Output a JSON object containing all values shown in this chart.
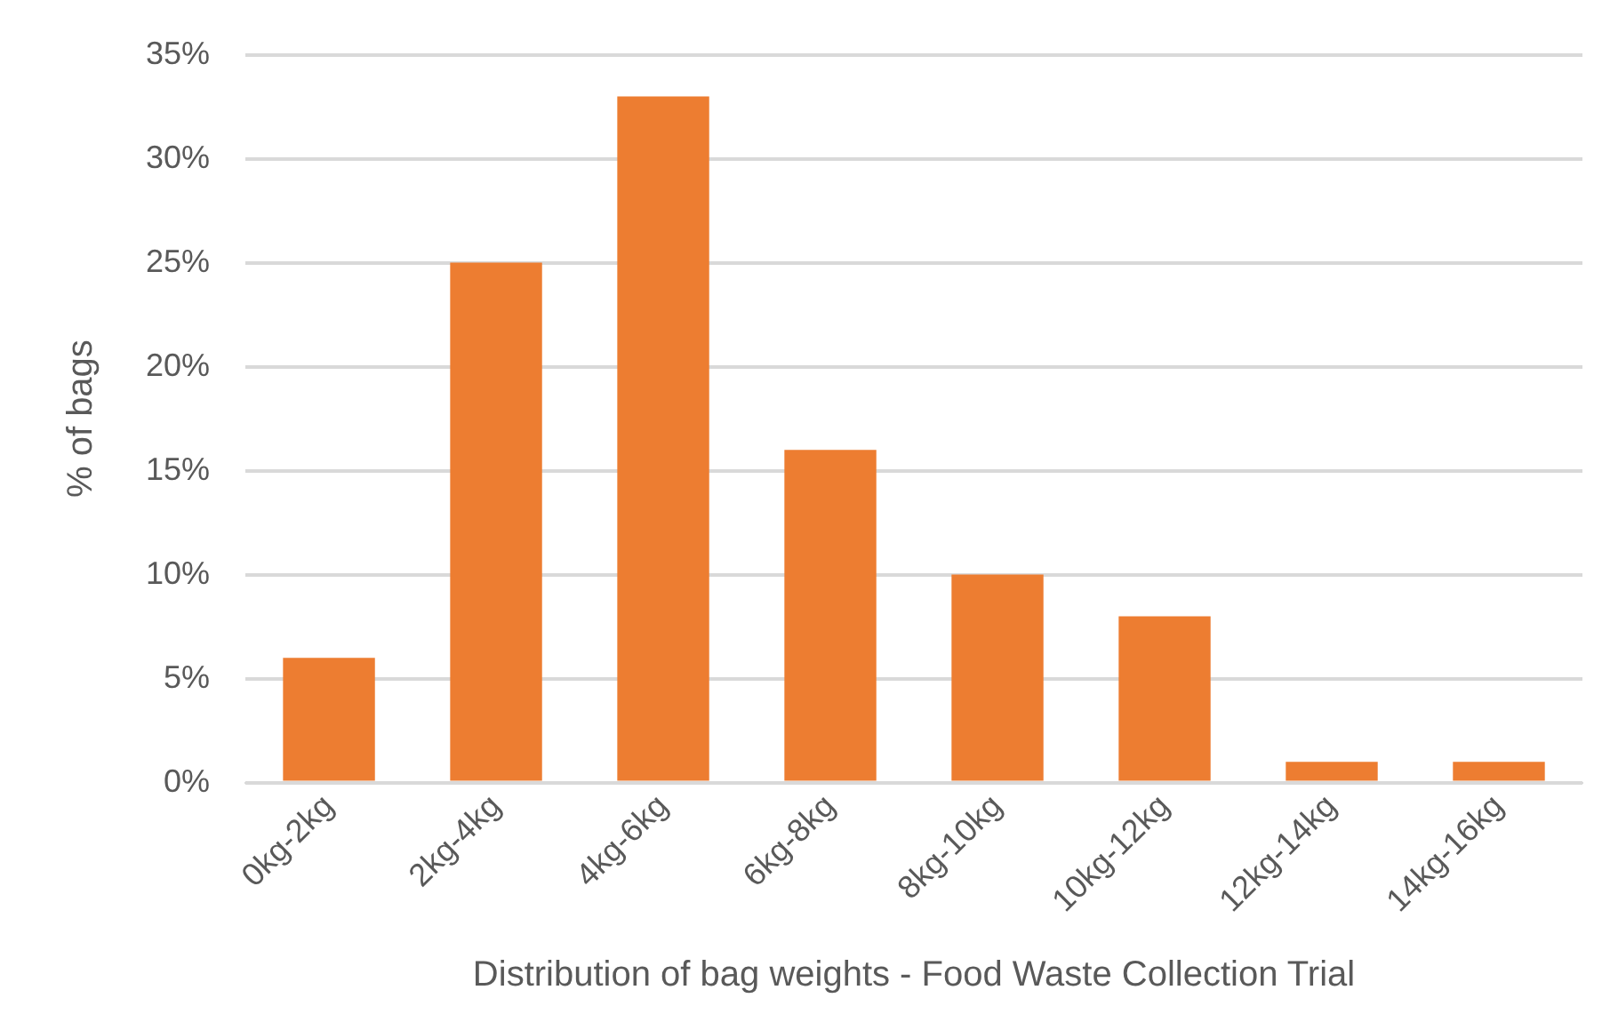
{
  "chart_data": {
    "type": "bar",
    "xlabel": "Distribution of bag weights - Food Waste Collection Trial",
    "ylabel": "% of bags",
    "categories": [
      "0kg-2kg",
      "2kg-4kg",
      "4kg-6kg",
      "6kg-8kg",
      "8kg-10kg",
      "10kg-12kg",
      "12kg-14kg",
      "14kg-16kg"
    ],
    "values": [
      6,
      25,
      33,
      16,
      10,
      8,
      1,
      1
    ],
    "color": "#ed7d31",
    "ylim": [
      0,
      35
    ],
    "yticks": [
      {
        "value": 0,
        "label": "0%"
      },
      {
        "value": 5,
        "label": "5%"
      },
      {
        "value": 10,
        "label": "10%"
      },
      {
        "value": 15,
        "label": "15%"
      },
      {
        "value": 20,
        "label": "20%"
      },
      {
        "value": 25,
        "label": "25%"
      },
      {
        "value": 30,
        "label": "30%"
      },
      {
        "value": 35,
        "label": "35%"
      }
    ],
    "grid": "y",
    "legend": false
  }
}
